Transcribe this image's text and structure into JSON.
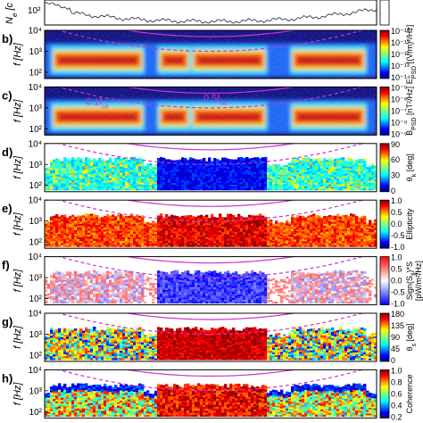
{
  "chart_data": {
    "type": "heatmap",
    "top_partial_panel": {
      "ylabel": "N",
      "ylabel_sub": "e",
      "tick_labels": [
        "10²"
      ]
    },
    "panels": [
      {
        "label": "b)",
        "ylabel": "f [Hz]",
        "yticks": [
          "10⁴",
          "10³",
          "10²"
        ],
        "colorbar": {
          "label": "E",
          "label_sub": "PSD",
          "unit": " [(V/m)²/Hz]",
          "ticks": [
            "10⁻¹⁰",
            "10⁻¹¹",
            "10⁻¹²",
            "10⁻¹³",
            "10⁻¹⁴"
          ],
          "scale": "log",
          "colormap": "jet"
        }
      },
      {
        "label": "c)",
        "ylabel": "f [Hz]",
        "yticks": [
          "10⁴",
          "10³",
          "10²"
        ],
        "annotations": [
          "0.1f",
          "0.5f"
        ],
        "annotation_sub": "ce",
        "colorbar": {
          "label": "B",
          "label_sub": "PSD",
          "unit": " [nT²/Hz]",
          "ticks": [
            "10⁻⁵",
            "10⁻⁶",
            "10⁻⁷",
            "10⁻⁸",
            "10⁻⁹"
          ],
          "scale": "log",
          "colormap": "jet"
        }
      },
      {
        "label": "d)",
        "ylabel": "f [Hz]",
        "yticks": [
          "10⁴",
          "10³",
          "10²"
        ],
        "colorbar": {
          "label": "θ",
          "label_sub": "k",
          "unit": " [deg]",
          "ticks": [
            "90",
            "60",
            "30",
            "0"
          ],
          "range": [
            0,
            90
          ],
          "colormap": "jet"
        }
      },
      {
        "label": "e)",
        "ylabel": "f [Hz]",
        "yticks": [
          "10⁴",
          "10³",
          "10²"
        ],
        "colorbar": {
          "label": "Ellipticity",
          "label_sub": "",
          "unit": "",
          "ticks": [
            "1.0",
            "0.5",
            "0.0",
            "-0.5",
            "-1.0"
          ],
          "range": [
            -1,
            1
          ],
          "colormap": "jet"
        }
      },
      {
        "label": "f)",
        "ylabel": "f [Hz]",
        "yticks": [
          "10⁴",
          "10³",
          "10²"
        ],
        "colorbar": {
          "label": "Sign(S",
          "label_sub": "∥",
          "unit": ")*S",
          "label2": "[pW/m²/Hz]",
          "ticks": [
            "1.0",
            "0.5",
            "0.0",
            "-0.5",
            "-1.0"
          ],
          "range": [
            -1,
            1
          ],
          "colormap": "bwr"
        }
      },
      {
        "label": "g)",
        "ylabel": "f [Hz]",
        "yticks": [
          "10⁴",
          "10³",
          "10²"
        ],
        "colorbar": {
          "label": "θ",
          "label_sub": "s",
          "unit": " [deg]",
          "ticks": [
            "180",
            "135",
            "90",
            "45",
            "0"
          ],
          "range": [
            0,
            180
          ],
          "colormap": "jet"
        }
      },
      {
        "label": "h)",
        "ylabel": "f [Hz]",
        "yticks": [
          "10⁴",
          "10³",
          "10²"
        ],
        "colorbar": {
          "label": "Coherence",
          "label_sub": "",
          "unit": "",
          "ticks": [
            "1.0",
            "0.8",
            "0.6",
            "0.4",
            "0.2"
          ],
          "range": [
            0,
            1
          ],
          "colormap": "jet"
        }
      }
    ],
    "y_scale": "log",
    "ylim_hz": [
      50,
      10000
    ],
    "overlay_colors": {
      "fce_lines": "#cc33cc"
    }
  }
}
